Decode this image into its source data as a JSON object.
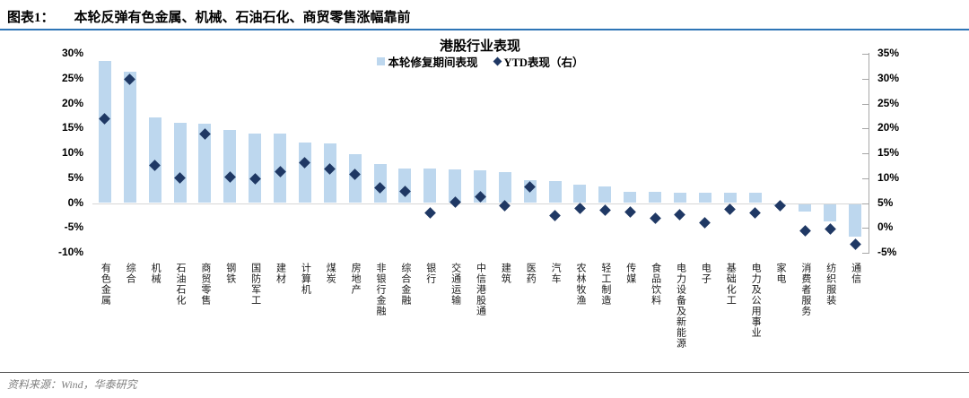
{
  "header": {
    "label": "图表1：",
    "title": "本轮反弹有色金属、机械、石油石化、商贸零售涨幅靠前"
  },
  "chart_data": {
    "type": "bar",
    "title": "港股行业表现",
    "legend_position": "top",
    "grid": false,
    "legend": [
      {
        "label": "本轮修复期间表现",
        "marker": "square",
        "color": "#BDD7EE"
      },
      {
        "label": "YTD表现（右）",
        "marker": "diamond",
        "color": "#1F3864"
      }
    ],
    "categories": [
      "有色金属",
      "综合",
      "机械",
      "石油石化",
      "商贸零售",
      "钢铁",
      "国防军工",
      "建材",
      "计算机",
      "煤炭",
      "房地产",
      "非银行金融",
      "综合金融",
      "银行",
      "交通运输",
      "中信港股通",
      "建筑",
      "医药",
      "汽车",
      "农林牧渔",
      "轻工制造",
      "传媒",
      "食品饮料",
      "电力设备及新能源",
      "电子",
      "基础化工",
      "电力及公用事业",
      "家电",
      "消费者服务",
      "纺织服装",
      "通信"
    ],
    "series": [
      {
        "name": "本轮修复期间表现",
        "type": "bar",
        "axis": "left",
        "color": "#BDD7EE",
        "values": [
          28.6,
          26.4,
          17.2,
          16.2,
          15.9,
          14.6,
          14.0,
          13.9,
          12.2,
          11.9,
          9.8,
          7.9,
          6.9,
          6.9,
          6.8,
          6.6,
          6.2,
          4.6,
          4.5,
          3.7,
          3.4,
          2.3,
          2.2,
          2.1,
          2.1,
          2.0,
          2.0,
          -0.3,
          -1.5,
          -3.6,
          -6.6
        ]
      },
      {
        "name": "YTD表现（右）",
        "type": "scatter",
        "axis": "right",
        "color": "#1F3864",
        "values": [
          22.0,
          29.8,
          12.5,
          10.1,
          18.9,
          10.2,
          9.9,
          11.3,
          13.1,
          11.8,
          10.8,
          8.0,
          7.4,
          3.0,
          5.2,
          6.3,
          4.4,
          8.3,
          2.4,
          3.9,
          3.6,
          3.2,
          2.0,
          2.7,
          1.0,
          3.8,
          3.0,
          4.4,
          -0.6,
          -0.3,
          -3.3
        ]
      }
    ],
    "left_axis": {
      "min": -10,
      "max": 30,
      "step": 5,
      "ticks": [
        "30%",
        "25%",
        "20%",
        "15%",
        "10%",
        "5%",
        "0%",
        "-5%",
        "-10%"
      ]
    },
    "right_axis": {
      "min": -5,
      "max": 35,
      "step": 5,
      "ticks": [
        "35%",
        "30%",
        "25%",
        "20%",
        "15%",
        "10%",
        "5%",
        "0%",
        "-5%"
      ]
    }
  },
  "footer": {
    "source": "资料来源：Wind，华泰研究"
  }
}
